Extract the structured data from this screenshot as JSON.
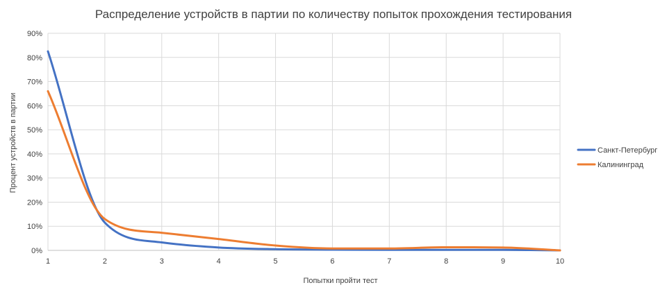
{
  "chart_data": {
    "type": "line",
    "title": "Распределение устройств в партии по количеству попыток прохождения тестирования",
    "xlabel": "Попытки пройти тест",
    "ylabel": "Процент устройств в партии",
    "x": [
      1,
      2,
      3,
      4,
      5,
      6,
      7,
      8,
      9,
      10
    ],
    "x_ticks": [
      "1",
      "2",
      "3",
      "4",
      "5",
      "6",
      "7",
      "8",
      "9",
      "10"
    ],
    "y_ticks": [
      "0%",
      "10%",
      "20%",
      "30%",
      "40%",
      "50%",
      "60%",
      "70%",
      "80%",
      "90%"
    ],
    "xlim": [
      1,
      10
    ],
    "ylim": [
      0,
      90
    ],
    "grid": true,
    "legend_position": "right",
    "series": [
      {
        "name": "Санкт-Петербург",
        "color": "#4472C4",
        "values": [
          82.5,
          11.5,
          3.3,
          1.2,
          0.5,
          0.3,
          0.2,
          0.2,
          0.2,
          0.0
        ]
      },
      {
        "name": "Калининград",
        "color": "#ED7D31",
        "values": [
          66,
          13,
          7.3,
          4.7,
          2.0,
          0.8,
          0.8,
          1.3,
          1.2,
          0.0
        ]
      }
    ]
  }
}
